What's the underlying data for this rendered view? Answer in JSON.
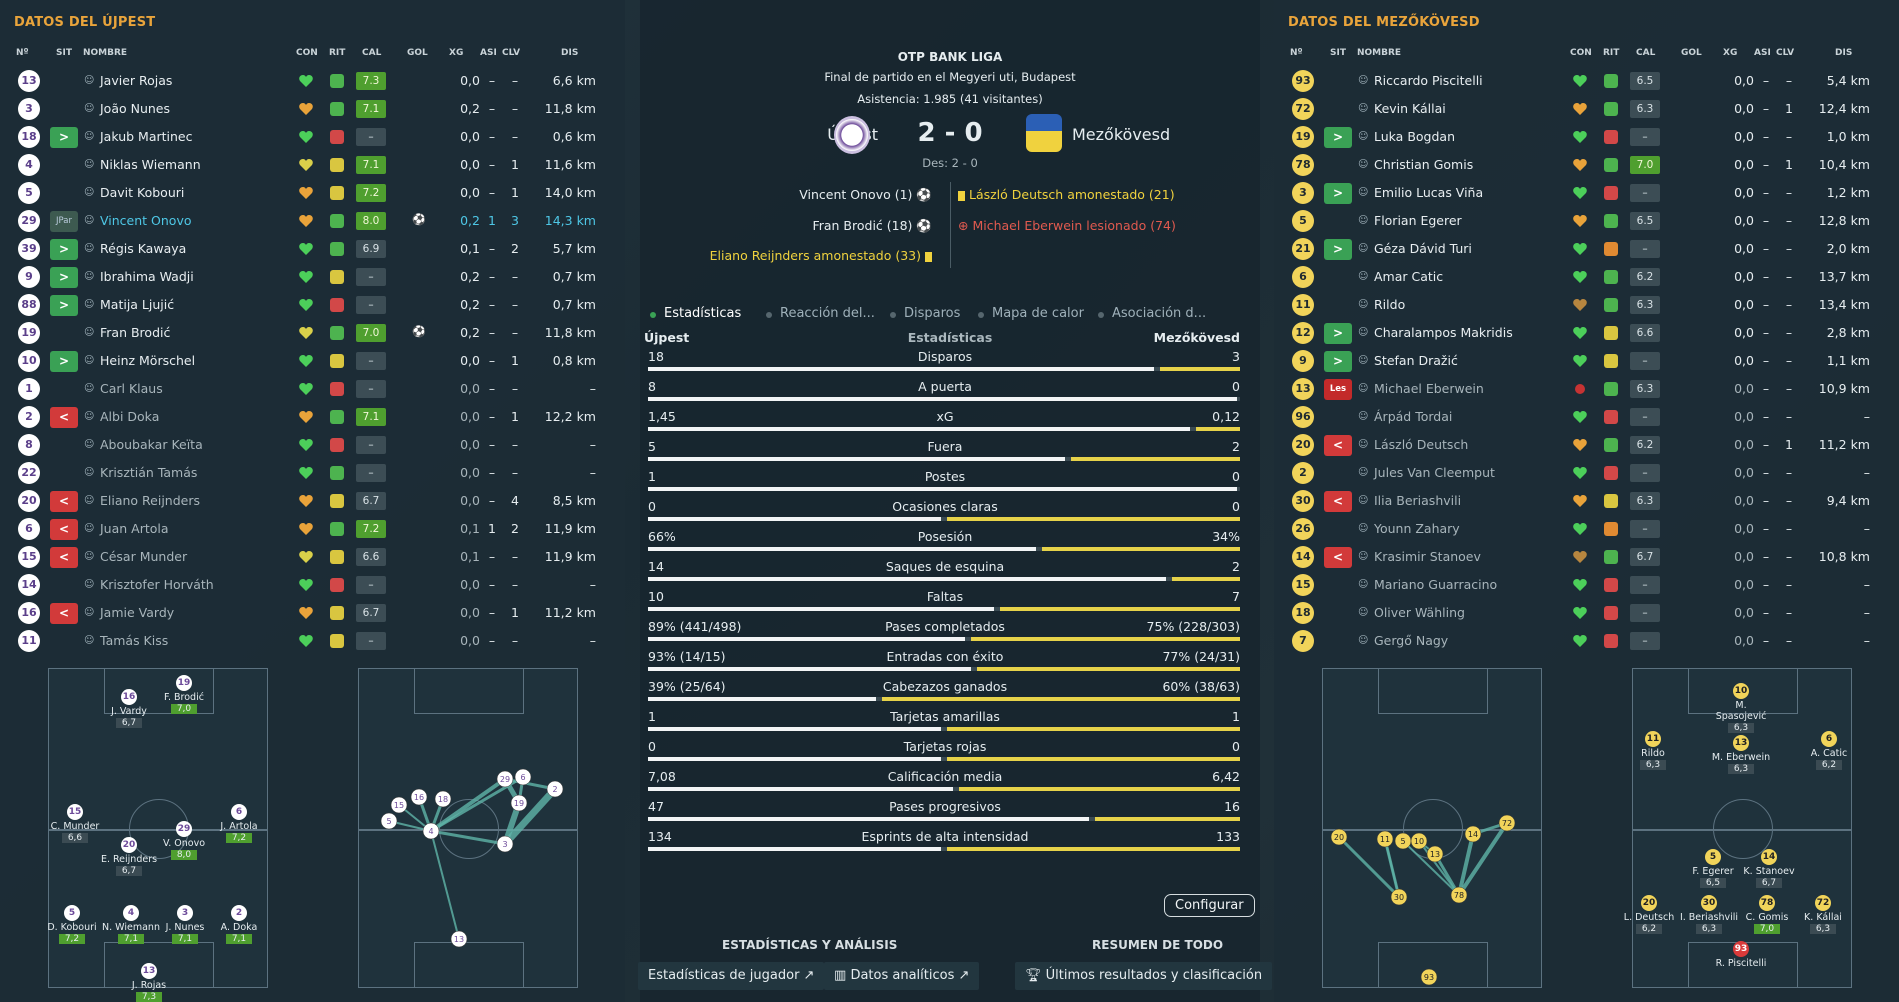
{
  "left": {
    "title": "DATOS DEL ÚJPEST",
    "cols": [
      "Nº",
      "SIT",
      "NOMBRE",
      "CON",
      "RIT",
      "CAL",
      "GOL",
      "XG",
      "ASI",
      "CLV",
      "DIS"
    ],
    "players": [
      {
        "n": "13",
        "sit": "",
        "name": "Javier Rojas",
        "rit": "g",
        "cal": "7.3",
        "calg": 1,
        "gol": "",
        "xg": "0,0",
        "asi": "–",
        "clv": "–",
        "dis": "6,6 km",
        "hc": "g"
      },
      {
        "n": "3",
        "sit": "",
        "name": "João Nunes",
        "rit": "g",
        "cal": "7.1",
        "calg": 1,
        "gol": "",
        "xg": "0,2",
        "asi": "–",
        "clv": "–",
        "dis": "11,8 km",
        "hc": "o"
      },
      {
        "n": "18",
        "sit": "in",
        "name": "Jakub Martinec",
        "rit": "r",
        "cal": "–",
        "calg": 0,
        "gol": "",
        "xg": "0,0",
        "asi": "–",
        "clv": "–",
        "dis": "0,6 km",
        "hc": "g"
      },
      {
        "n": "4",
        "sit": "",
        "name": "Niklas Wiemann",
        "rit": "y",
        "cal": "7.1",
        "calg": 1,
        "gol": "",
        "xg": "0,0",
        "asi": "–",
        "clv": "1",
        "dis": "11,6 km",
        "hc": "y"
      },
      {
        "n": "5",
        "sit": "",
        "name": "Davit Kobouri",
        "rit": "y",
        "cal": "7.2",
        "calg": 1,
        "gol": "",
        "xg": "0,0",
        "asi": "–",
        "clv": "1",
        "dis": "14,0 km",
        "hc": "o"
      },
      {
        "n": "29",
        "sit": "jp",
        "name": "Vincent Onovo",
        "rit": "g",
        "cal": "8.0",
        "calg": 1,
        "gol": "⚽",
        "xg": "0,2",
        "asi": "1",
        "clv": "3",
        "dis": "14,3 km",
        "hc": "o",
        "hl": 1
      },
      {
        "n": "39",
        "sit": "in",
        "name": "Régis Kawaya",
        "rit": "g",
        "cal": "6.9",
        "calg": 0,
        "gol": "",
        "xg": "0,1",
        "asi": "–",
        "clv": "2",
        "dis": "5,7 km",
        "hc": "g"
      },
      {
        "n": "9",
        "sit": "in",
        "name": "Ibrahima Wadji",
        "rit": "y",
        "cal": "–",
        "calg": 0,
        "gol": "",
        "xg": "0,2",
        "asi": "–",
        "clv": "–",
        "dis": "0,7 km",
        "hc": "g"
      },
      {
        "n": "88",
        "sit": "in",
        "name": "Matija Ljujić",
        "rit": "r",
        "cal": "–",
        "calg": 0,
        "gol": "",
        "xg": "0,2",
        "asi": "–",
        "clv": "–",
        "dis": "0,7 km",
        "hc": "g"
      },
      {
        "n": "19",
        "sit": "",
        "name": "Fran Brodić",
        "rit": "g",
        "cal": "7.0",
        "calg": 1,
        "gol": "⚽",
        "xg": "0,2",
        "asi": "–",
        "clv": "–",
        "dis": "11,8 km",
        "hc": "y"
      },
      {
        "n": "10",
        "sit": "in",
        "name": "Heinz Mörschel",
        "rit": "y",
        "cal": "–",
        "calg": 0,
        "gol": "",
        "xg": "0,0",
        "asi": "–",
        "clv": "1",
        "dis": "0,8 km",
        "hc": "g"
      },
      {
        "n": "1",
        "sit": "",
        "name": "Carl Klaus",
        "rit": "r",
        "cal": "–",
        "calg": 0,
        "gol": "",
        "xg": "0,0",
        "asi": "–",
        "clv": "–",
        "dis": "–",
        "hc": "g",
        "dim": 1
      },
      {
        "n": "2",
        "sit": "out",
        "name": "Albi Doka",
        "rit": "g",
        "cal": "7.1",
        "calg": 1,
        "gol": "",
        "xg": "0,0",
        "asi": "–",
        "clv": "1",
        "dis": "12,2 km",
        "hc": "o",
        "dim": 1
      },
      {
        "n": "8",
        "sit": "",
        "name": "Aboubakar Keïta",
        "rit": "r",
        "cal": "–",
        "calg": 0,
        "gol": "",
        "xg": "0,0",
        "asi": "–",
        "clv": "–",
        "dis": "–",
        "hc": "g",
        "dim": 1
      },
      {
        "n": "22",
        "sit": "",
        "name": "Krisztián Tamás",
        "rit": "g",
        "cal": "–",
        "calg": 0,
        "gol": "",
        "xg": "0,0",
        "asi": "–",
        "clv": "–",
        "dis": "–",
        "hc": "g",
        "dim": 1
      },
      {
        "n": "20",
        "sit": "out",
        "name": "Eliano Reijnders",
        "rit": "y",
        "cal": "6.7",
        "calg": 0,
        "gol": "",
        "xg": "0,0",
        "asi": "–",
        "clv": "4",
        "dis": "8,5 km",
        "hc": "o",
        "dim": 1
      },
      {
        "n": "6",
        "sit": "out",
        "name": "Juan Artola",
        "rit": "g",
        "cal": "7.2",
        "calg": 1,
        "gol": "",
        "xg": "0,1",
        "asi": "1",
        "clv": "2",
        "dis": "11,9 km",
        "hc": "o",
        "dim": 1
      },
      {
        "n": "15",
        "sit": "out",
        "name": "César Munder",
        "rit": "y",
        "cal": "6.6",
        "calg": 0,
        "gol": "",
        "xg": "0,1",
        "asi": "–",
        "clv": "–",
        "dis": "11,9 km",
        "hc": "y",
        "dim": 1
      },
      {
        "n": "14",
        "sit": "",
        "name": "Krisztofer Horváth",
        "rit": "r",
        "cal": "–",
        "calg": 0,
        "gol": "",
        "xg": "0,0",
        "asi": "–",
        "clv": "–",
        "dis": "–",
        "hc": "g",
        "dim": 1
      },
      {
        "n": "16",
        "sit": "out",
        "name": "Jamie Vardy",
        "rit": "y",
        "cal": "6.7",
        "calg": 0,
        "gol": "",
        "xg": "0,0",
        "asi": "–",
        "clv": "1",
        "dis": "11,2 km",
        "hc": "o",
        "dim": 1
      },
      {
        "n": "11",
        "sit": "",
        "name": "Tamás Kiss",
        "rit": "y",
        "cal": "–",
        "calg": 0,
        "gol": "",
        "xg": "0,0",
        "asi": "–",
        "clv": "–",
        "dis": "–",
        "hc": "g",
        "dim": 1
      }
    ],
    "sit_labels": {
      "jp": "JPar",
      "les": "Les"
    },
    "form": [
      {
        "n": "16",
        "name": "J. Vardy",
        "r": "6,7",
        "g": 0
      },
      {
        "n": "19",
        "name": "F. Brodić",
        "r": "7,0",
        "g": 1
      },
      {
        "n": "15",
        "name": "C. Munder",
        "r": "6,6",
        "g": 0
      },
      {
        "n": "6",
        "name": "J. Artola",
        "r": "7,2",
        "g": 1
      },
      {
        "n": "20",
        "name": "E. Reijnders",
        "r": "6,7",
        "g": 0
      },
      {
        "n": "29",
        "name": "V. Onovo",
        "r": "8,0",
        "g": 1
      },
      {
        "n": "5",
        "name": "D. Kobouri",
        "r": "7,2",
        "g": 1
      },
      {
        "n": "4",
        "name": "N. Wiemann",
        "r": "7,1",
        "g": 1
      },
      {
        "n": "3",
        "name": "J. Nunes",
        "r": "7,1",
        "g": 1
      },
      {
        "n": "2",
        "name": "A. Doka",
        "r": "7,1",
        "g": 1
      },
      {
        "n": "13",
        "name": "J. Rojas",
        "r": "7,3",
        "g": 1
      }
    ],
    "pass_nodes": [
      "15",
      "16",
      "18",
      "5",
      "4",
      "29",
      "6",
      "19",
      "2",
      "3",
      "13"
    ]
  },
  "right": {
    "title": "DATOS DEL MEZŐKÖVESD",
    "players": [
      {
        "n": "93",
        "sit": "",
        "name": "Riccardo Piscitelli",
        "rit": "g",
        "cal": "6.5",
        "calg": 0,
        "xg": "0,0",
        "asi": "–",
        "clv": "–",
        "dis": "5,4 km",
        "hc": "g"
      },
      {
        "n": "72",
        "sit": "",
        "name": "Kevin Kállai",
        "rit": "g",
        "cal": "6.3",
        "calg": 0,
        "xg": "0,0",
        "asi": "–",
        "clv": "1",
        "dis": "12,4 km",
        "hc": "o"
      },
      {
        "n": "19",
        "sit": "in",
        "name": "Luka Bogdan",
        "rit": "r",
        "cal": "–",
        "calg": 0,
        "xg": "0,0",
        "asi": "–",
        "clv": "–",
        "dis": "1,0 km",
        "hc": "g"
      },
      {
        "n": "78",
        "sit": "",
        "name": "Christian Gomis",
        "rit": "g",
        "cal": "7.0",
        "calg": 1,
        "xg": "0,0",
        "asi": "–",
        "clv": "1",
        "dis": "10,4 km",
        "hc": "o"
      },
      {
        "n": "3",
        "sit": "in",
        "name": "Emilio Lucas Viña",
        "rit": "r",
        "cal": "–",
        "calg": 0,
        "xg": "0,0",
        "asi": "–",
        "clv": "–",
        "dis": "1,2 km",
        "hc": "g"
      },
      {
        "n": "5",
        "sit": "",
        "name": "Florian Egerer",
        "rit": "g",
        "cal": "6.5",
        "calg": 0,
        "xg": "0,0",
        "asi": "–",
        "clv": "–",
        "dis": "12,8 km",
        "hc": "o"
      },
      {
        "n": "21",
        "sit": "in",
        "name": "Géza Dávid Turi",
        "rit": "o",
        "cal": "–",
        "calg": 0,
        "xg": "0,0",
        "asi": "–",
        "clv": "–",
        "dis": "2,0 km",
        "hc": "g"
      },
      {
        "n": "6",
        "sit": "",
        "name": "Amar Catic",
        "rit": "g",
        "cal": "6.2",
        "calg": 0,
        "xg": "0,0",
        "asi": "–",
        "clv": "–",
        "dis": "13,7 km",
        "hc": "g"
      },
      {
        "n": "11",
        "sit": "",
        "name": "Rildo",
        "rit": "g",
        "cal": "6.3",
        "calg": 0,
        "xg": "0,0",
        "asi": "–",
        "clv": "–",
        "dis": "13,4 km",
        "hc": "b"
      },
      {
        "n": "12",
        "sit": "in",
        "name": "Charalampos Makridis",
        "rit": "y",
        "cal": "6.6",
        "calg": 0,
        "xg": "0,0",
        "asi": "–",
        "clv": "–",
        "dis": "2,8 km",
        "hc": "g"
      },
      {
        "n": "9",
        "sit": "in",
        "name": "Stefan Dražić",
        "rit": "y",
        "cal": "–",
        "calg": 0,
        "xg": "0,0",
        "asi": "–",
        "clv": "–",
        "dis": "1,1 km",
        "hc": "g"
      },
      {
        "n": "13",
        "sit": "les",
        "name": "Michael Eberwein",
        "rit": "g",
        "cal": "6.3",
        "calg": 0,
        "xg": "0,0",
        "asi": "–",
        "clv": "–",
        "dis": "10,9 km",
        "hc": "x",
        "dim": 1
      },
      {
        "n": "96",
        "sit": "",
        "name": "Árpád Tordai",
        "rit": "r",
        "cal": "–",
        "calg": 0,
        "xg": "0,0",
        "asi": "–",
        "clv": "–",
        "dis": "–",
        "hc": "g",
        "dim": 1
      },
      {
        "n": "20",
        "sit": "out",
        "name": "László Deutsch",
        "rit": "g",
        "cal": "6.2",
        "calg": 0,
        "xg": "0,0",
        "asi": "–",
        "clv": "1",
        "dis": "11,2 km",
        "hc": "o",
        "dim": 1
      },
      {
        "n": "2",
        "sit": "",
        "name": "Jules Van Cleemput",
        "rit": "r",
        "cal": "–",
        "calg": 0,
        "xg": "0,0",
        "asi": "–",
        "clv": "–",
        "dis": "–",
        "hc": "g",
        "dim": 1
      },
      {
        "n": "30",
        "sit": "out",
        "name": "Ilia Beriashvili",
        "rit": "y",
        "cal": "6.3",
        "calg": 0,
        "xg": "0,0",
        "asi": "–",
        "clv": "–",
        "dis": "9,4 km",
        "hc": "o",
        "dim": 1
      },
      {
        "n": "26",
        "sit": "",
        "name": "Younn Zahary",
        "rit": "o",
        "cal": "–",
        "calg": 0,
        "xg": "0,0",
        "asi": "–",
        "clv": "–",
        "dis": "–",
        "hc": "g",
        "dim": 1
      },
      {
        "n": "14",
        "sit": "out",
        "name": "Krasimir Stanoev",
        "rit": "g",
        "cal": "6.7",
        "calg": 0,
        "xg": "0,0",
        "asi": "–",
        "clv": "–",
        "dis": "10,8 km",
        "hc": "b",
        "dim": 1
      },
      {
        "n": "15",
        "sit": "",
        "name": "Mariano Guarracino",
        "rit": "r",
        "cal": "–",
        "calg": 0,
        "xg": "0,0",
        "asi": "–",
        "clv": "–",
        "dis": "–",
        "hc": "g",
        "dim": 1
      },
      {
        "n": "18",
        "sit": "",
        "name": "Oliver Wähling",
        "rit": "r",
        "cal": "–",
        "calg": 0,
        "xg": "0,0",
        "asi": "–",
        "clv": "–",
        "dis": "–",
        "hc": "g",
        "dim": 1
      },
      {
        "n": "7",
        "sit": "",
        "name": "Gergő Nagy",
        "rit": "r",
        "cal": "–",
        "calg": 0,
        "xg": "0,0",
        "asi": "–",
        "clv": "–",
        "dis": "–",
        "hc": "g",
        "dim": 1
      }
    ],
    "form": [
      {
        "n": "10",
        "name": "M. Spasojević",
        "r": "6,3",
        "g": 0
      },
      {
        "n": "11",
        "name": "Rildo",
        "r": "6,3",
        "g": 0
      },
      {
        "n": "13",
        "name": "M. Eberwein",
        "r": "6,3",
        "g": 0
      },
      {
        "n": "6",
        "name": "A. Catic",
        "r": "6,2",
        "g": 0
      },
      {
        "n": "5",
        "name": "F. Egerer",
        "r": "6,5",
        "g": 0
      },
      {
        "n": "14",
        "name": "K. Stanoev",
        "r": "6,7",
        "g": 0
      },
      {
        "n": "20",
        "name": "L. Deutsch",
        "r": "6,2",
        "g": 0
      },
      {
        "n": "30",
        "name": "I. Beriashvili",
        "r": "6,3",
        "g": 0
      },
      {
        "n": "78",
        "name": "C. Gomis",
        "r": "7,0",
        "g": 1
      },
      {
        "n": "72",
        "name": "K. Kállai",
        "r": "6,3",
        "g": 0
      },
      {
        "n": "93",
        "name": "R. Piscitelli",
        "r": "",
        "g": 0
      }
    ],
    "pass_nodes": [
      "20",
      "11",
      "5",
      "10",
      "13",
      "14",
      "72",
      "30",
      "78",
      "93"
    ]
  },
  "center": {
    "competition": "OTP BANK LIGA",
    "venue": "Final de partido en el Megyeri uti, Budapest",
    "attendance": "Asistencia: 1.985 (41 visitantes)",
    "home": "Újpest",
    "away": "Mezőkövesd",
    "score": "2 - 0",
    "des": "Des: 2 - 0",
    "events_home": [
      "Vincent Onovo (1)",
      "Fran Brodić (18)",
      "Eliano Reijnders amonestado (33)"
    ],
    "events_away": [
      "László Deutsch amonestado (21)",
      "Michael Eberwein lesionado (74)"
    ],
    "tabs": [
      "Estadísticas",
      "Reacción del...",
      "Disparos",
      "Mapa de calor",
      "Asociación d..."
    ],
    "stats_header": {
      "home": "Újpest",
      "label": "Estadísticas",
      "away": "Mezőkövesd"
    },
    "stats": [
      {
        "l": "18",
        "label": "Disparos",
        "r": "3",
        "p": 0.86
      },
      {
        "l": "8",
        "label": "A puerta",
        "r": "0",
        "p": 1.0
      },
      {
        "l": "1,45",
        "label": "xG",
        "r": "0,12",
        "p": 0.92
      },
      {
        "l": "5",
        "label": "Fuera",
        "r": "2",
        "p": 0.71
      },
      {
        "l": "1",
        "label": "Postes",
        "r": "0",
        "p": 1.0
      },
      {
        "l": "0",
        "label": "Ocasiones claras",
        "r": "0",
        "p": 0.5
      },
      {
        "l": "66%",
        "label": "Posesión",
        "r": "34%",
        "p": 0.66
      },
      {
        "l": "14",
        "label": "Saques de esquina",
        "r": "2",
        "p": 0.88
      },
      {
        "l": "10",
        "label": "Faltas",
        "r": "7",
        "p": 0.59
      },
      {
        "l": "89% (441/498)",
        "label": "Pases completados",
        "r": "75% (228/303)",
        "p": 0.54
      },
      {
        "l": "93% (14/15)",
        "label": "Entradas con éxito",
        "r": "77% (24/31)",
        "p": 0.55
      },
      {
        "l": "39% (25/64)",
        "label": "Cabezazos ganados",
        "r": "60% (38/63)",
        "p": 0.39
      },
      {
        "l": "1",
        "label": "Tarjetas amarillas",
        "r": "1",
        "p": 0.5
      },
      {
        "l": "0",
        "label": "Tarjetas rojas",
        "r": "0",
        "p": 0.5
      },
      {
        "l": "7,08",
        "label": "Calificación media",
        "r": "6,42",
        "p": 0.52
      },
      {
        "l": "47",
        "label": "Pases progresivos",
        "r": "16",
        "p": 0.75
      },
      {
        "l": "134",
        "label": "Esprints de alta intensidad",
        "r": "133",
        "p": 0.5
      }
    ],
    "configure": "Configurar",
    "footer_left": "ESTADÍSTICAS Y ANÁLISIS",
    "footer_right": "RESUMEN DE TODO",
    "links": [
      "Estadísticas de jugador",
      "Datos analíticos",
      "Últimos resultados y clasificación"
    ]
  }
}
